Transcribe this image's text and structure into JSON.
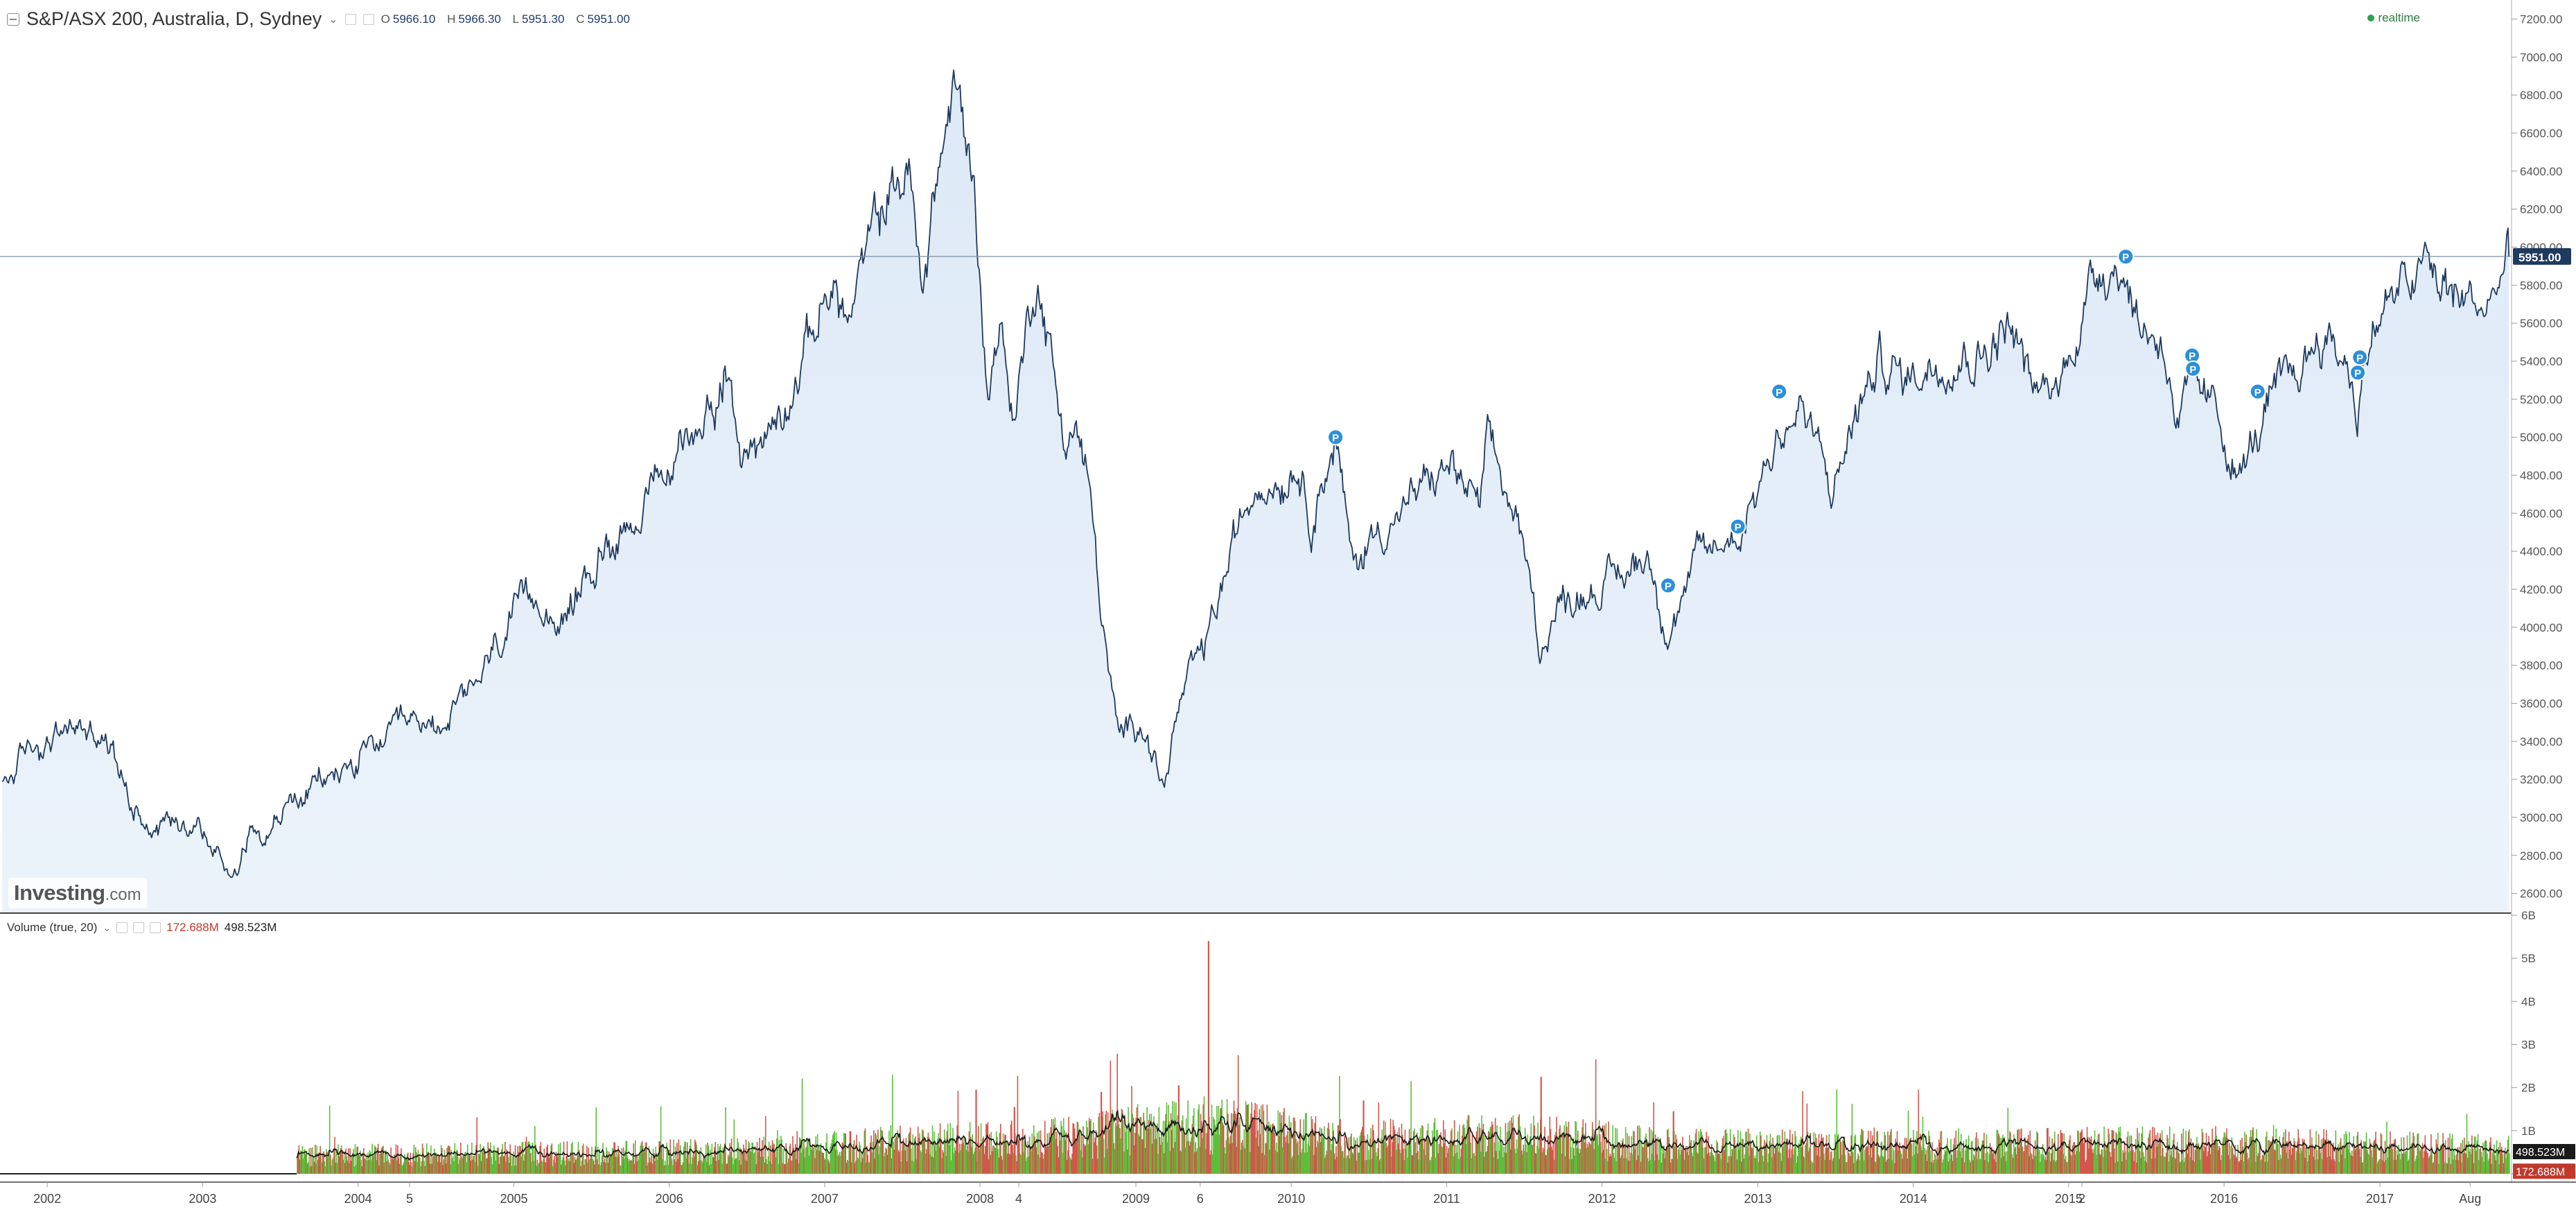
{
  "header": {
    "symbol_title": "S&P/ASX 200, Australia, D, Sydney",
    "open_label": "O",
    "open_value": "5966.10",
    "high_label": "H",
    "high_value": "5966.30",
    "low_label": "L",
    "low_value": "5951.30",
    "close_label": "C",
    "close_value": "5951.00",
    "status": "realtime",
    "watermark_bold": "Investing",
    "watermark_suffix": ".com"
  },
  "volume_legend": {
    "title": "Volume (true, 20)",
    "volume_value": "172.688M",
    "ma_value": "498.523M"
  },
  "colors": {
    "price_line": "#1e3a5f",
    "area_fill": "#dbe8f6",
    "last_price_bg": "#1e3a5f",
    "marker": "#2b8fd9",
    "up_volume": "#5cbf3b",
    "down_volume": "#d2574a",
    "volume_ma": "#1a1a1a"
  },
  "chart_data": [
    {
      "type": "area",
      "series": [
        {
          "values": [
            {
              "x": "2001-09-17",
              "y": 3150
            },
            {
              "x": "2001-11-15",
              "y": 3350
            },
            {
              "x": "2002-01-15",
              "y": 3420
            },
            {
              "x": "2002-03-15",
              "y": 3480
            },
            {
              "x": "2002-05-01",
              "y": 3450
            },
            {
              "x": "2002-06-15",
              "y": 3300
            },
            {
              "x": "2002-07-20",
              "y": 3080
            },
            {
              "x": "2002-09-15",
              "y": 2950
            },
            {
              "x": "2002-10-15",
              "y": 3000
            },
            {
              "x": "2002-12-15",
              "y": 3000
            },
            {
              "x": "2003-02-01",
              "y": 2800
            },
            {
              "x": "2003-03-13",
              "y": 2700
            },
            {
              "x": "2003-04-15",
              "y": 2900
            },
            {
              "x": "2003-06-15",
              "y": 2980
            },
            {
              "x": "2003-09-15",
              "y": 3150
            },
            {
              "x": "2003-12-15",
              "y": 3270
            },
            {
              "x": "2004-03-15",
              "y": 3420
            },
            {
              "x": "2004-06-15",
              "y": 3480
            },
            {
              "x": "2004-09-15",
              "y": 3600
            },
            {
              "x": "2004-12-15",
              "y": 3990
            },
            {
              "x": "2005-03-15",
              "y": 4180
            },
            {
              "x": "2005-05-01",
              "y": 4000
            },
            {
              "x": "2005-06-15",
              "y": 4250
            },
            {
              "x": "2005-09-15",
              "y": 4550
            },
            {
              "x": "2005-12-15",
              "y": 4750
            },
            {
              "x": "2006-03-15",
              "y": 5100
            },
            {
              "x": "2006-05-10",
              "y": 5350
            },
            {
              "x": "2006-06-15",
              "y": 4900
            },
            {
              "x": "2006-08-15",
              "y": 5000
            },
            {
              "x": "2006-11-15",
              "y": 5450
            },
            {
              "x": "2007-01-15",
              "y": 5800
            },
            {
              "x": "2007-02-28",
              "y": 5600
            },
            {
              "x": "2007-04-15",
              "y": 6000
            },
            {
              "x": "2007-06-01",
              "y": 6300
            },
            {
              "x": "2007-07-20",
              "y": 6400
            },
            {
              "x": "2007-08-16",
              "y": 5700
            },
            {
              "x": "2007-09-15",
              "y": 6300
            },
            {
              "x": "2007-11-01",
              "y": 6830
            },
            {
              "x": "2007-12-15",
              "y": 6400
            },
            {
              "x": "2008-01-22",
              "y": 5200
            },
            {
              "x": "2008-02-15",
              "y": 5650
            },
            {
              "x": "2008-03-17",
              "y": 5100
            },
            {
              "x": "2008-05-15",
              "y": 5900
            },
            {
              "x": "2008-07-15",
              "y": 5000
            },
            {
              "x": "2008-08-15",
              "y": 5050
            },
            {
              "x": "2008-09-15",
              "y": 4700
            },
            {
              "x": "2008-10-15",
              "y": 4000
            },
            {
              "x": "2008-11-20",
              "y": 3400
            },
            {
              "x": "2009-01-15",
              "y": 3550
            },
            {
              "x": "2009-03-06",
              "y": 3150
            },
            {
              "x": "2009-04-15",
              "y": 3600
            },
            {
              "x": "2009-06-15",
              "y": 3900
            },
            {
              "x": "2009-08-15",
              "y": 4400
            },
            {
              "x": "2009-10-15",
              "y": 4800
            },
            {
              "x": "2009-12-15",
              "y": 4800
            },
            {
              "x": "2010-01-15",
              "y": 4900
            },
            {
              "x": "2010-02-15",
              "y": 4600
            },
            {
              "x": "2010-04-15",
              "y": 5000
            },
            {
              "x": "2010-05-25",
              "y": 4300
            },
            {
              "x": "2010-07-15",
              "y": 4500
            },
            {
              "x": "2010-09-15",
              "y": 4600
            },
            {
              "x": "2010-11-15",
              "y": 4750
            },
            {
              "x": "2011-01-15",
              "y": 4850
            },
            {
              "x": "2011-03-17",
              "y": 4600
            },
            {
              "x": "2011-04-10",
              "y": 4950
            },
            {
              "x": "2011-06-15",
              "y": 4550
            },
            {
              "x": "2011-08-09",
              "y": 3900
            },
            {
              "x": "2011-09-15",
              "y": 4100
            },
            {
              "x": "2011-11-15",
              "y": 4200
            },
            {
              "x": "2012-02-15",
              "y": 4250
            },
            {
              "x": "2012-04-15",
              "y": 4400
            },
            {
              "x": "2012-06-04",
              "y": 4000
            },
            {
              "x": "2012-08-15",
              "y": 4350
            },
            {
              "x": "2012-11-15",
              "y": 4500
            },
            {
              "x": "2013-02-15",
              "y": 5000
            },
            {
              "x": "2013-04-15",
              "y": 5150
            },
            {
              "x": "2013-06-25",
              "y": 4700
            },
            {
              "x": "2013-08-15",
              "y": 5100
            },
            {
              "x": "2013-10-15",
              "y": 5400
            },
            {
              "x": "2013-12-15",
              "y": 5300
            },
            {
              "x": "2014-03-15",
              "y": 5450
            },
            {
              "x": "2014-06-15",
              "y": 5450
            },
            {
              "x": "2014-08-15",
              "y": 5600
            },
            {
              "x": "2014-10-15",
              "y": 5200
            },
            {
              "x": "2014-12-15",
              "y": 5300
            },
            {
              "x": "2015-01-15",
              "y": 5550
            },
            {
              "x": "2015-03-15",
              "y": 5900
            },
            {
              "x": "2015-04-27",
              "y": 5950
            },
            {
              "x": "2015-06-15",
              "y": 5600
            },
            {
              "x": "2015-08-15",
              "y": 5500
            },
            {
              "x": "2015-09-15",
              "y": 5050
            },
            {
              "x": "2015-10-15",
              "y": 5250
            },
            {
              "x": "2015-12-15",
              "y": 5100
            },
            {
              "x": "2016-02-09",
              "y": 4800
            },
            {
              "x": "2016-04-15",
              "y": 5150
            },
            {
              "x": "2016-06-15",
              "y": 5300
            },
            {
              "x": "2016-08-15",
              "y": 5550
            },
            {
              "x": "2016-10-15",
              "y": 5400
            },
            {
              "x": "2016-11-09",
              "y": 5150
            },
            {
              "x": "2016-12-15",
              "y": 5600
            },
            {
              "x": "2017-02-15",
              "y": 5750
            },
            {
              "x": "2017-04-15",
              "y": 5900
            },
            {
              "x": "2017-05-15",
              "y": 5800
            },
            {
              "x": "2017-07-15",
              "y": 5720
            },
            {
              "x": "2017-08-15",
              "y": 5700
            },
            {
              "x": "2017-09-15",
              "y": 5680
            },
            {
              "x": "2017-10-15",
              "y": 5880
            },
            {
              "x": "2017-10-31",
              "y": 5951
            }
          ]
        }
      ],
      "x_range": [
        "2001-09-12",
        "2017-11-03"
      ],
      "ylim": [
        2500,
        7300
      ],
      "y_ticks": [
        2600,
        2800,
        3000,
        3200,
        3400,
        3600,
        3800,
        4000,
        4200,
        4400,
        4600,
        4800,
        5000,
        5200,
        5400,
        5600,
        5800,
        6000,
        6200,
        6400,
        6600,
        6800,
        7000,
        7200
      ],
      "y_tick_labels": [
        "2600.00",
        "2800.00",
        "3000.00",
        "3200.00",
        "3400.00",
        "3600.00",
        "3800.00",
        "4000.00",
        "4200.00",
        "4400.00",
        "4600.00",
        "4800.00",
        "5000.00",
        "5200.00",
        "5400.00",
        "5600.00",
        "5800.00",
        "6000.00",
        "6200.00",
        "6400.00",
        "6600.00",
        "6800.00",
        "7000.00",
        "7200.00"
      ],
      "x_ticks": [
        {
          "x": "2002-01-01",
          "label": "2002"
        },
        {
          "x": "2003-01-01",
          "label": "2003"
        },
        {
          "x": "2004-01-01",
          "label": "2004"
        },
        {
          "x": "2004-05-01",
          "label": "5"
        },
        {
          "x": "2005-01-01",
          "label": "2005"
        },
        {
          "x": "2006-01-01",
          "label": "2006"
        },
        {
          "x": "2007-01-01",
          "label": "2007"
        },
        {
          "x": "2008-01-01",
          "label": "2008"
        },
        {
          "x": "2008-04-01",
          "label": "4"
        },
        {
          "x": "2009-01-01",
          "label": "2009"
        },
        {
          "x": "2009-06-01",
          "label": "6"
        },
        {
          "x": "2010-01-01",
          "label": "2010"
        },
        {
          "x": "2011-01-01",
          "label": "2011"
        },
        {
          "x": "2012-01-01",
          "label": "2012"
        },
        {
          "x": "2013-01-01",
          "label": "2013"
        },
        {
          "x": "2014-01-01",
          "label": "2014"
        },
        {
          "x": "2015-01-01",
          "label": "2015"
        },
        {
          "x": "2015-02-01",
          "label": "2"
        },
        {
          "x": "2016-01-01",
          "label": "2016"
        },
        {
          "x": "2017-01-01",
          "label": "2017"
        },
        {
          "x": "2017-08-01",
          "label": "Aug"
        }
      ],
      "last_price": 5951,
      "last_price_label": "5951.00",
      "grid": false,
      "markers": [
        {
          "x": "2010-04-15",
          "y": 5000,
          "label": "P"
        },
        {
          "x": "2012-06-04",
          "y": 4220,
          "label": "P"
        },
        {
          "x": "2012-11-15",
          "y": 4530,
          "label": "P"
        },
        {
          "x": "2013-02-20",
          "y": 5240,
          "label": "P"
        },
        {
          "x": "2015-05-15",
          "y": 5950,
          "label": "P"
        },
        {
          "x": "2015-10-18",
          "y": 5430,
          "label": "P"
        },
        {
          "x": "2015-10-20",
          "y": 5360,
          "label": "P"
        },
        {
          "x": "2016-03-20",
          "y": 5240,
          "label": "P"
        },
        {
          "x": "2016-11-15",
          "y": 5420,
          "label": "P"
        },
        {
          "x": "2016-11-10",
          "y": 5340,
          "label": "P"
        }
      ]
    },
    {
      "type": "bar",
      "title": "Volume (true, 20)",
      "volume_start": "2003-08-10",
      "base_volume_b": [
        {
          "x": "2003-08-10",
          "y": 0.45
        },
        {
          "x": "2005-01-01",
          "y": 0.5
        },
        {
          "x": "2006-06-01",
          "y": 0.55
        },
        {
          "x": "2007-06-01",
          "y": 0.75
        },
        {
          "x": "2008-06-01",
          "y": 0.85
        },
        {
          "x": "2009-06-15",
          "y": 1.25
        },
        {
          "x": "2010-06-01",
          "y": 0.85
        },
        {
          "x": "2011-08-15",
          "y": 0.95
        },
        {
          "x": "2012-06-01",
          "y": 0.7
        },
        {
          "x": "2014-01-01",
          "y": 0.7
        },
        {
          "x": "2016-01-01",
          "y": 0.75
        },
        {
          "x": "2017-10-31",
          "y": 0.6
        }
      ],
      "spikes_b": [
        {
          "x": "2009-06-19",
          "y": 5.4
        },
        {
          "x": "2009-04-10",
          "y": 2.05
        },
        {
          "x": "2011-08-09",
          "y": 2.25
        },
        {
          "x": "2007-12-21",
          "y": 1.95
        },
        {
          "x": "2008-10-10",
          "y": 1.9
        },
        {
          "x": "2010-06-18",
          "y": 1.7
        },
        {
          "x": "2009-09-18",
          "y": 1.6
        },
        {
          "x": "2008-03-20",
          "y": 1.55
        },
        {
          "x": "2012-06-15",
          "y": 1.45
        }
      ],
      "ylim": [
        0,
        6
      ],
      "y_ticks": [
        0,
        1,
        2,
        3,
        4,
        5,
        6
      ],
      "y_tick_labels": [
        "0",
        "1B",
        "2B",
        "3B",
        "4B",
        "5B",
        "6B"
      ],
      "last_volume": 0.1727,
      "last_volume_label": "172.688M",
      "last_ma": 0.4985,
      "last_ma_label": "498.523M"
    }
  ]
}
